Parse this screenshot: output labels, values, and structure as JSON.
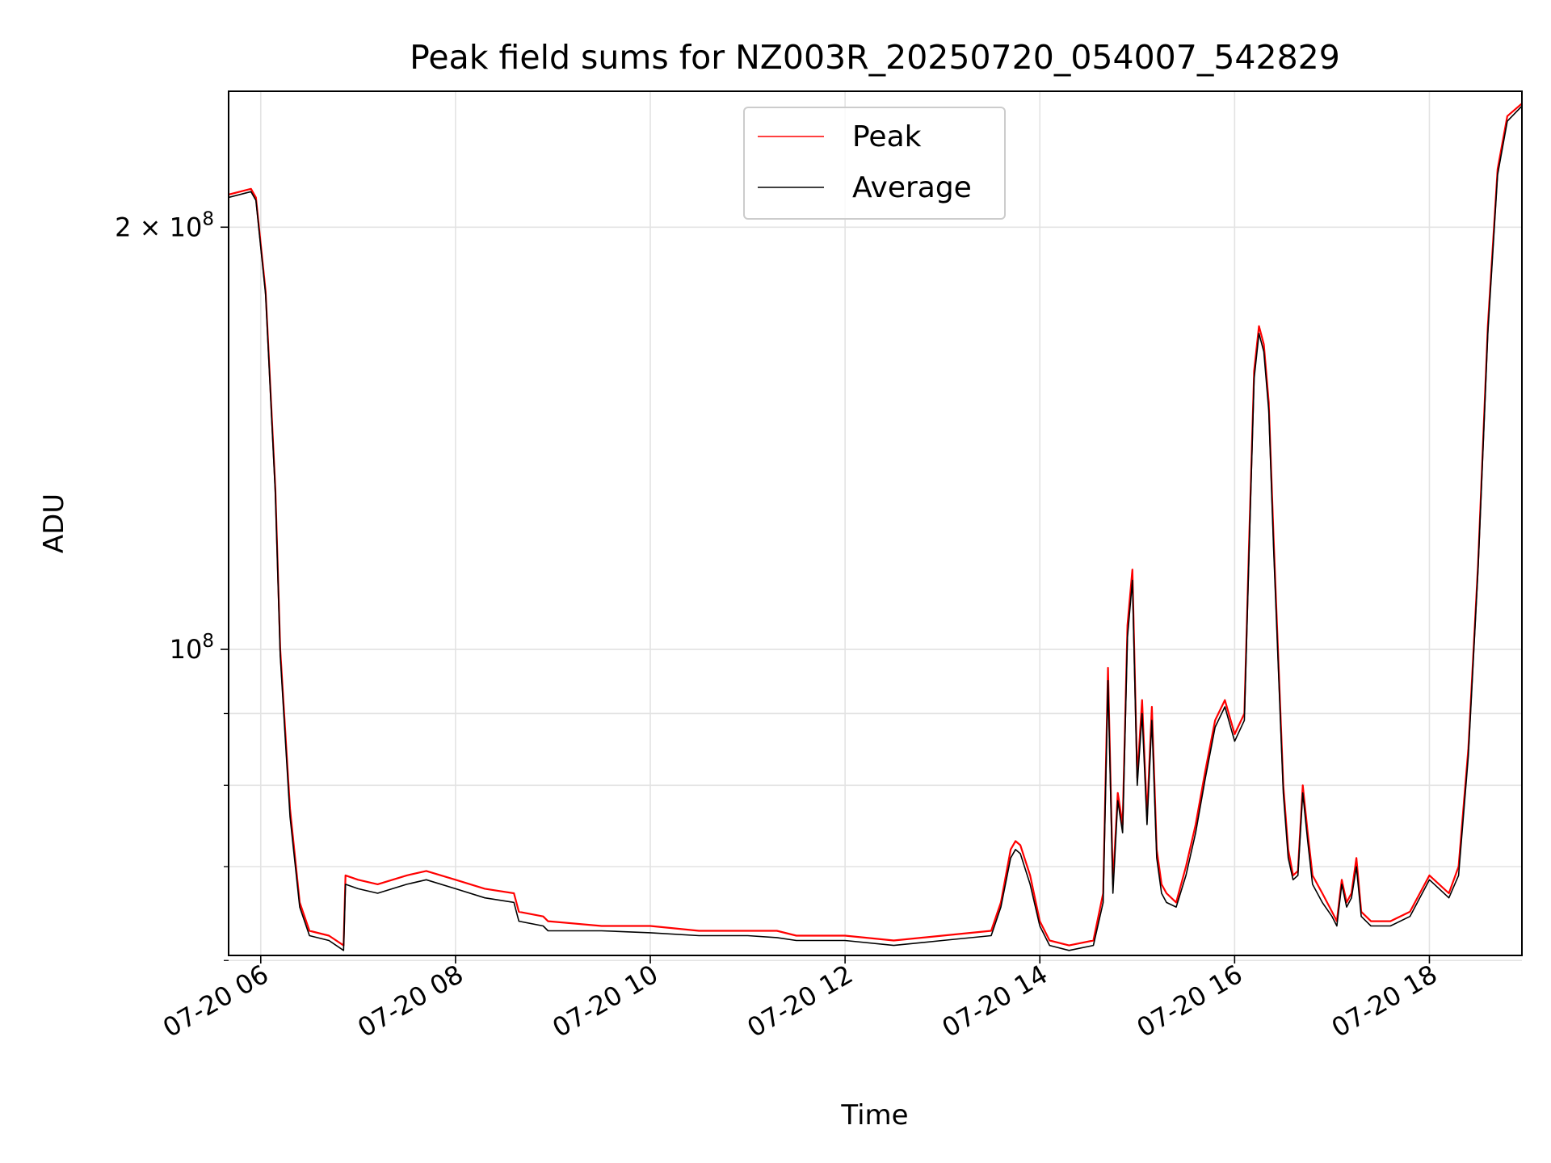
{
  "chart_data": {
    "type": "line",
    "title": "Peak field sums for NZ003R_20250720_054007_542829",
    "xlabel": "Time",
    "ylabel": "ADU",
    "x_unit": "hours (2025-07-20)",
    "xlim": [
      5.67,
      18.95
    ],
    "ylim": [
      60500000,
      250000000
    ],
    "yscale": "log",
    "grid": true,
    "legend_position": "upper center",
    "x_ticks": [
      {
        "value": 6,
        "label": "07-20 06"
      },
      {
        "value": 8,
        "label": "07-20 08"
      },
      {
        "value": 10,
        "label": "07-20 10"
      },
      {
        "value": 12,
        "label": "07-20 12"
      },
      {
        "value": 14,
        "label": "07-20 14"
      },
      {
        "value": 16,
        "label": "07-20 16"
      },
      {
        "value": 18,
        "label": "07-20 18"
      }
    ],
    "y_major_ticks": [
      {
        "value": 100000000,
        "base": "10",
        "exp": "8",
        "prefix": ""
      },
      {
        "value": 200000000,
        "base": "10",
        "exp": "8",
        "prefix": "2 × "
      }
    ],
    "y_minor_ticks": [
      60000000,
      70000000,
      80000000,
      90000000
    ],
    "series": [
      {
        "name": "Peak",
        "color": "#ff0000",
        "x": [
          5.67,
          5.9,
          5.95,
          6.05,
          6.15,
          6.2,
          6.3,
          6.4,
          6.5,
          6.7,
          6.85,
          6.87,
          7.0,
          7.2,
          7.5,
          7.7,
          8.0,
          8.3,
          8.6,
          8.65,
          8.9,
          8.95,
          9.5,
          10.0,
          10.5,
          11.0,
          11.3,
          11.5,
          12.0,
          12.5,
          13.0,
          13.5,
          13.6,
          13.7,
          13.75,
          13.8,
          13.9,
          14.0,
          14.1,
          14.3,
          14.55,
          14.65,
          14.7,
          14.75,
          14.8,
          14.85,
          14.9,
          14.95,
          15.0,
          15.05,
          15.1,
          15.15,
          15.2,
          15.25,
          15.3,
          15.4,
          15.5,
          15.6,
          15.7,
          15.8,
          15.9,
          16.0,
          16.1,
          16.15,
          16.2,
          16.25,
          16.3,
          16.35,
          16.4,
          16.5,
          16.55,
          16.6,
          16.65,
          16.7,
          16.75,
          16.8,
          16.9,
          17.0,
          17.05,
          17.1,
          17.15,
          17.2,
          17.25,
          17.3,
          17.4,
          17.6,
          17.8,
          18.0,
          18.1,
          18.2,
          18.3,
          18.4,
          18.5,
          18.6,
          18.7,
          18.8,
          18.95
        ],
        "y": [
          211000000,
          213000000,
          210000000,
          180000000,
          130000000,
          100000000,
          77000000,
          66000000,
          63000000,
          62500000,
          61500000,
          69000000,
          68500000,
          68000000,
          69000000,
          69500000,
          68500000,
          67500000,
          67000000,
          65000000,
          64500000,
          64000000,
          63500000,
          63500000,
          63000000,
          63000000,
          63000000,
          62500000,
          62500000,
          62000000,
          62500000,
          63000000,
          66000000,
          72000000,
          73000000,
          72500000,
          69000000,
          64000000,
          62000000,
          61500000,
          62000000,
          67000000,
          97000000,
          68000000,
          79000000,
          75000000,
          104000000,
          114000000,
          81000000,
          92000000,
          76000000,
          91000000,
          72000000,
          68000000,
          67000000,
          66000000,
          70000000,
          75000000,
          82000000,
          89000000,
          92000000,
          87000000,
          90000000,
          120000000,
          158000000,
          170000000,
          165000000,
          150000000,
          120000000,
          80000000,
          72000000,
          69000000,
          69500000,
          80000000,
          74000000,
          69000000,
          67000000,
          65000000,
          64000000,
          68500000,
          66000000,
          67000000,
          71000000,
          65000000,
          64000000,
          64000000,
          65000000,
          69000000,
          68000000,
          67000000,
          70000000,
          85000000,
          115000000,
          170000000,
          220000000,
          240000000,
          245000000
        ]
      },
      {
        "name": "Average",
        "color": "#000000",
        "x": [
          5.67,
          5.9,
          5.95,
          6.05,
          6.15,
          6.2,
          6.3,
          6.4,
          6.5,
          6.7,
          6.85,
          6.87,
          7.0,
          7.2,
          7.5,
          7.7,
          8.0,
          8.3,
          8.6,
          8.65,
          8.9,
          8.95,
          9.5,
          10.0,
          10.5,
          11.0,
          11.3,
          11.5,
          12.0,
          12.5,
          13.0,
          13.5,
          13.6,
          13.7,
          13.75,
          13.8,
          13.9,
          14.0,
          14.1,
          14.3,
          14.55,
          14.65,
          14.7,
          14.75,
          14.8,
          14.85,
          14.9,
          14.95,
          15.0,
          15.05,
          15.1,
          15.15,
          15.2,
          15.25,
          15.3,
          15.4,
          15.5,
          15.6,
          15.7,
          15.8,
          15.9,
          16.0,
          16.1,
          16.15,
          16.2,
          16.25,
          16.3,
          16.35,
          16.4,
          16.5,
          16.55,
          16.6,
          16.65,
          16.7,
          16.75,
          16.8,
          16.9,
          17.0,
          17.05,
          17.1,
          17.15,
          17.2,
          17.25,
          17.3,
          17.4,
          17.6,
          17.8,
          18.0,
          18.1,
          18.2,
          18.3,
          18.4,
          18.5,
          18.6,
          18.7,
          18.8,
          18.95
        ],
        "y": [
          210000000,
          212000000,
          209000000,
          179000000,
          129000000,
          99000000,
          76000000,
          65500000,
          62500000,
          62000000,
          61000000,
          68000000,
          67500000,
          67000000,
          68000000,
          68500000,
          67500000,
          66500000,
          66000000,
          64000000,
          63500000,
          63000000,
          63000000,
          62800000,
          62500000,
          62500000,
          62300000,
          62000000,
          62000000,
          61500000,
          62000000,
          62500000,
          65500000,
          71000000,
          72000000,
          71500000,
          68000000,
          63500000,
          61500000,
          61000000,
          61500000,
          66000000,
          95000000,
          67000000,
          78000000,
          74000000,
          102000000,
          112000000,
          80000000,
          90000000,
          75000000,
          89000000,
          71000000,
          67000000,
          66000000,
          65500000,
          69000000,
          74000000,
          81000000,
          88000000,
          91000000,
          86000000,
          89000000,
          118000000,
          156000000,
          168000000,
          163000000,
          148000000,
          118000000,
          79000000,
          71000000,
          68500000,
          69000000,
          79000000,
          73000000,
          68000000,
          66000000,
          64500000,
          63500000,
          68000000,
          65500000,
          66500000,
          70000000,
          64500000,
          63500000,
          63500000,
          64500000,
          68500000,
          67500000,
          66500000,
          69000000,
          84000000,
          114000000,
          168000000,
          218000000,
          238000000,
          244000000
        ]
      }
    ]
  }
}
